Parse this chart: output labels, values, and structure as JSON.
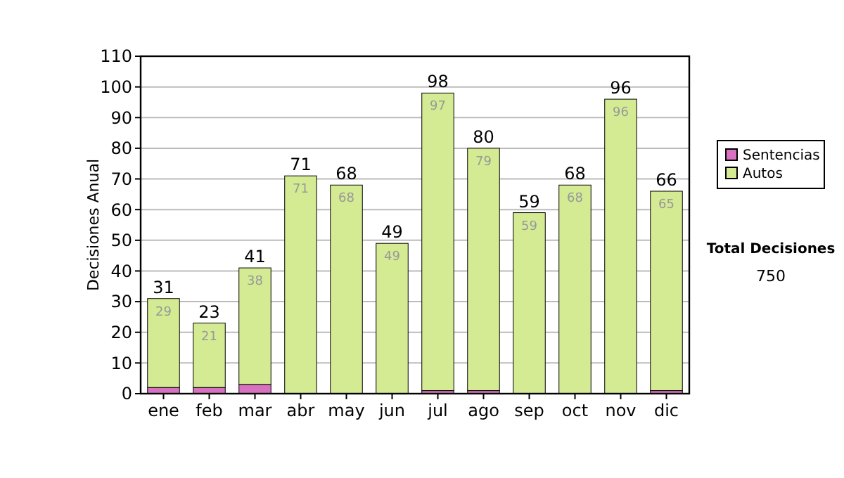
{
  "chart_data": {
    "type": "bar",
    "stacked": true,
    "ylabel": "Decisiones Anual",
    "categories": [
      "ene",
      "feb",
      "mar",
      "abr",
      "may",
      "jun",
      "jul",
      "ago",
      "sep",
      "oct",
      "nov",
      "dic"
    ],
    "series": [
      {
        "name": "Sentencias",
        "color": "#d872c0",
        "values": [
          2,
          2,
          3,
          0,
          0,
          0,
          1,
          1,
          0,
          0,
          0,
          1
        ]
      },
      {
        "name": "Autos",
        "color": "#d4eb94",
        "values": [
          29,
          21,
          38,
          71,
          68,
          49,
          97,
          79,
          59,
          68,
          96,
          65
        ],
        "value_labels": [
          "29",
          "21",
          "38",
          "71",
          "68",
          "49",
          "97",
          "79",
          "59",
          "68",
          "96",
          "65"
        ]
      }
    ],
    "totals": [
      "31",
      "23",
      "41",
      "71",
      "68",
      "49",
      "98",
      "80",
      "59",
      "68",
      "96",
      "66"
    ],
    "ylim": [
      0,
      110
    ],
    "yticks": [
      0,
      10,
      20,
      30,
      40,
      50,
      60,
      70,
      80,
      90,
      100,
      110
    ],
    "grid": "y",
    "legend": "right",
    "annotations": [
      "Total Decisiones",
      "750"
    ]
  }
}
